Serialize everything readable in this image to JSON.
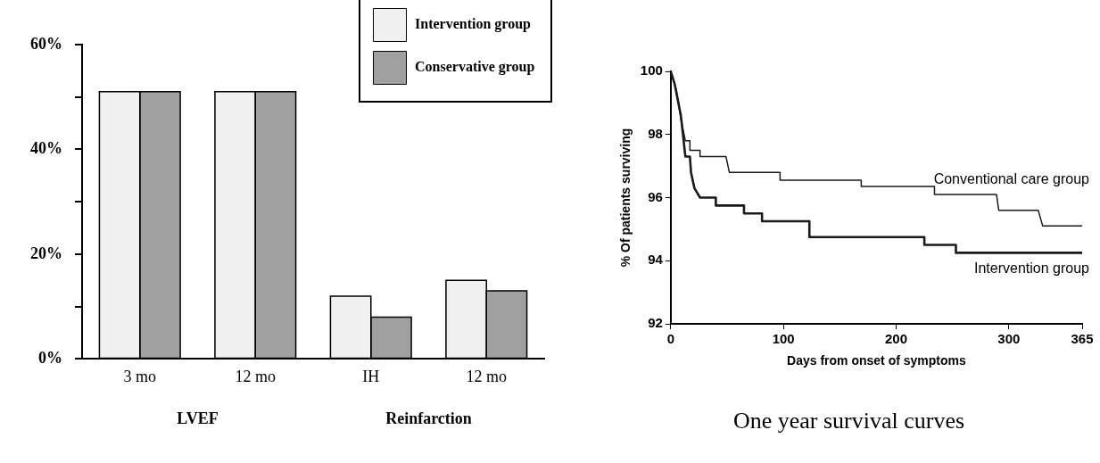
{
  "chart_data": [
    {
      "type": "bar",
      "categories": [
        "3 mo",
        "12 mo",
        "IH",
        "12 mo"
      ],
      "series": [
        {
          "name": "Intervention group",
          "color": "#f0f0f0",
          "values": [
            51,
            51,
            12,
            15
          ]
        },
        {
          "name": "Conservative group",
          "color": "#a0a0a0",
          "values": [
            51,
            51,
            8,
            13
          ]
        }
      ],
      "ylim": [
        0,
        60
      ],
      "yticks": [
        {
          "value": 0,
          "label": "0%"
        },
        {
          "value": 10,
          "label": null
        },
        {
          "value": 20,
          "label": "20%"
        },
        {
          "value": 30,
          "label": null
        },
        {
          "value": 40,
          "label": "40%"
        },
        {
          "value": 50,
          "label": null
        },
        {
          "value": 60,
          "label": "60%"
        }
      ],
      "annotations": [
        "LVEF",
        "Reinfarction"
      ],
      "grid": false,
      "legend": "top right"
    },
    {
      "type": "line",
      "title": "One year survival curves",
      "xlabel": "Days from onset of symptoms",
      "ylabel": "% Of patients surviving",
      "series": [
        {
          "name": "Conventional care group",
          "color": "#1a1a1a",
          "x": [
            0,
            5,
            9,
            13,
            17,
            17,
            26,
            26,
            49,
            52,
            97,
            97,
            169,
            169,
            234,
            234,
            289,
            291,
            326,
            330,
            365
          ],
          "values": [
            100,
            99.4,
            98.5,
            97.8,
            97.8,
            97.5,
            97.5,
            97.3,
            97.3,
            96.8,
            96.8,
            96.55,
            96.55,
            96.35,
            96.35,
            96.1,
            96.1,
            95.6,
            95.6,
            95.1,
            95.1
          ]
        },
        {
          "name": "Intervention group",
          "color": "#1a1a1a",
          "x": [
            0,
            3.5,
            9,
            13,
            17,
            18,
            21,
            26,
            40,
            40,
            65,
            65,
            81,
            81,
            123,
            123,
            225,
            225,
            253,
            253,
            365
          ],
          "values": [
            100,
            99.6,
            98.6,
            97.3,
            97.3,
            96.8,
            96.3,
            96.0,
            96.0,
            95.75,
            95.75,
            95.5,
            95.5,
            95.25,
            95.25,
            94.75,
            94.75,
            94.5,
            94.5,
            94.25,
            94.25
          ]
        }
      ],
      "xlim": [
        0,
        365
      ],
      "xticks": [
        0,
        100,
        200,
        300,
        365
      ],
      "ylim": [
        92,
        100
      ],
      "yticks": [
        92,
        94,
        96,
        98,
        100
      ],
      "grid": false,
      "legend": false,
      "marker": "none",
      "line_style": "solid"
    }
  ]
}
